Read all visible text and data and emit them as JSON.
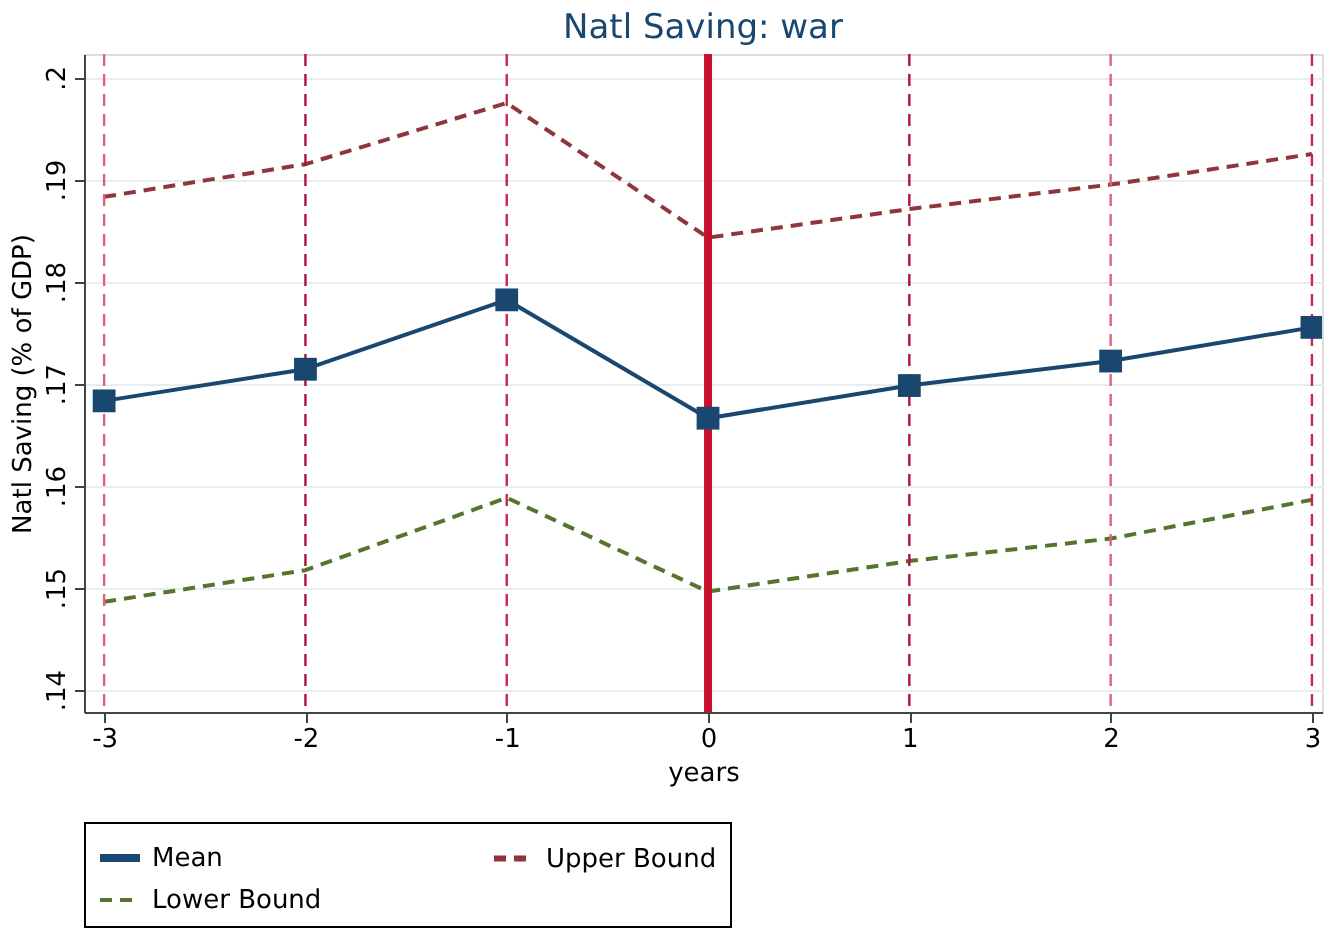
{
  "chart_data": {
    "type": "line",
    "title": "Natl Saving: war",
    "xlabel": "years",
    "ylabel": "Natl Saving (% of GDP)",
    "x": [
      -3,
      -2,
      -1,
      0,
      1,
      2,
      3
    ],
    "series": [
      {
        "name": "Mean",
        "color": "#1a476f",
        "marker": "square",
        "line_style": "solid",
        "values": [
          0.1683,
          0.1714,
          0.1782,
          0.1666,
          0.1698,
          0.1722,
          0.1755
        ]
      },
      {
        "name": "Upper Bound",
        "color": "#90353b",
        "marker": "none",
        "line_style": "dashed",
        "values": [
          0.1883,
          0.1915,
          0.1975,
          0.1843,
          0.1871,
          0.1895,
          0.1925
        ]
      },
      {
        "name": "Lower Bound",
        "color": "#55752f",
        "marker": "none",
        "line_style": "dashed",
        "values": [
          0.1486,
          0.1517,
          0.1588,
          0.1496,
          0.1526,
          0.1548,
          0.1586
        ]
      }
    ],
    "xlim": [
      -3.1,
      3.05
    ],
    "ylim": [
      0.1378,
      0.2023
    ],
    "xticks": [
      {
        "value": -3,
        "label": "-3"
      },
      {
        "value": -2,
        "label": "-2"
      },
      {
        "value": -1,
        "label": "-1"
      },
      0,
      1,
      2,
      3
    ],
    "yticks": [
      {
        "value": 0.14,
        "label": ".14"
      },
      {
        "value": 0.15,
        "label": ".15"
      },
      {
        "value": 0.16,
        "label": ".16"
      },
      {
        "value": 0.17,
        "label": ".17"
      },
      {
        "value": 0.18,
        "label": ".18"
      },
      {
        "value": 0.19,
        "label": ".19"
      },
      {
        "value": 0.2,
        "label": ".2"
      }
    ],
    "ref_lines": [
      {
        "axis": "x",
        "value": -3,
        "color": "#e0607e",
        "line_style": "dashed"
      },
      {
        "axis": "x",
        "value": -2,
        "color": "#b0103a",
        "line_style": "dashed"
      },
      {
        "axis": "x",
        "value": -1,
        "color": "#c8254f",
        "line_style": "dashed"
      },
      {
        "axis": "x",
        "value": 0,
        "color": "#c8102e",
        "line_style": "solid"
      },
      {
        "axis": "x",
        "value": 1,
        "color": "#b0103a",
        "line_style": "dashed"
      },
      {
        "axis": "x",
        "value": 2,
        "color": "#e0607e",
        "line_style": "dashed"
      },
      {
        "axis": "x",
        "value": 3,
        "color": "#c8254f",
        "line_style": "dashed"
      }
    ],
    "grid": "y",
    "legend": "bottom"
  }
}
